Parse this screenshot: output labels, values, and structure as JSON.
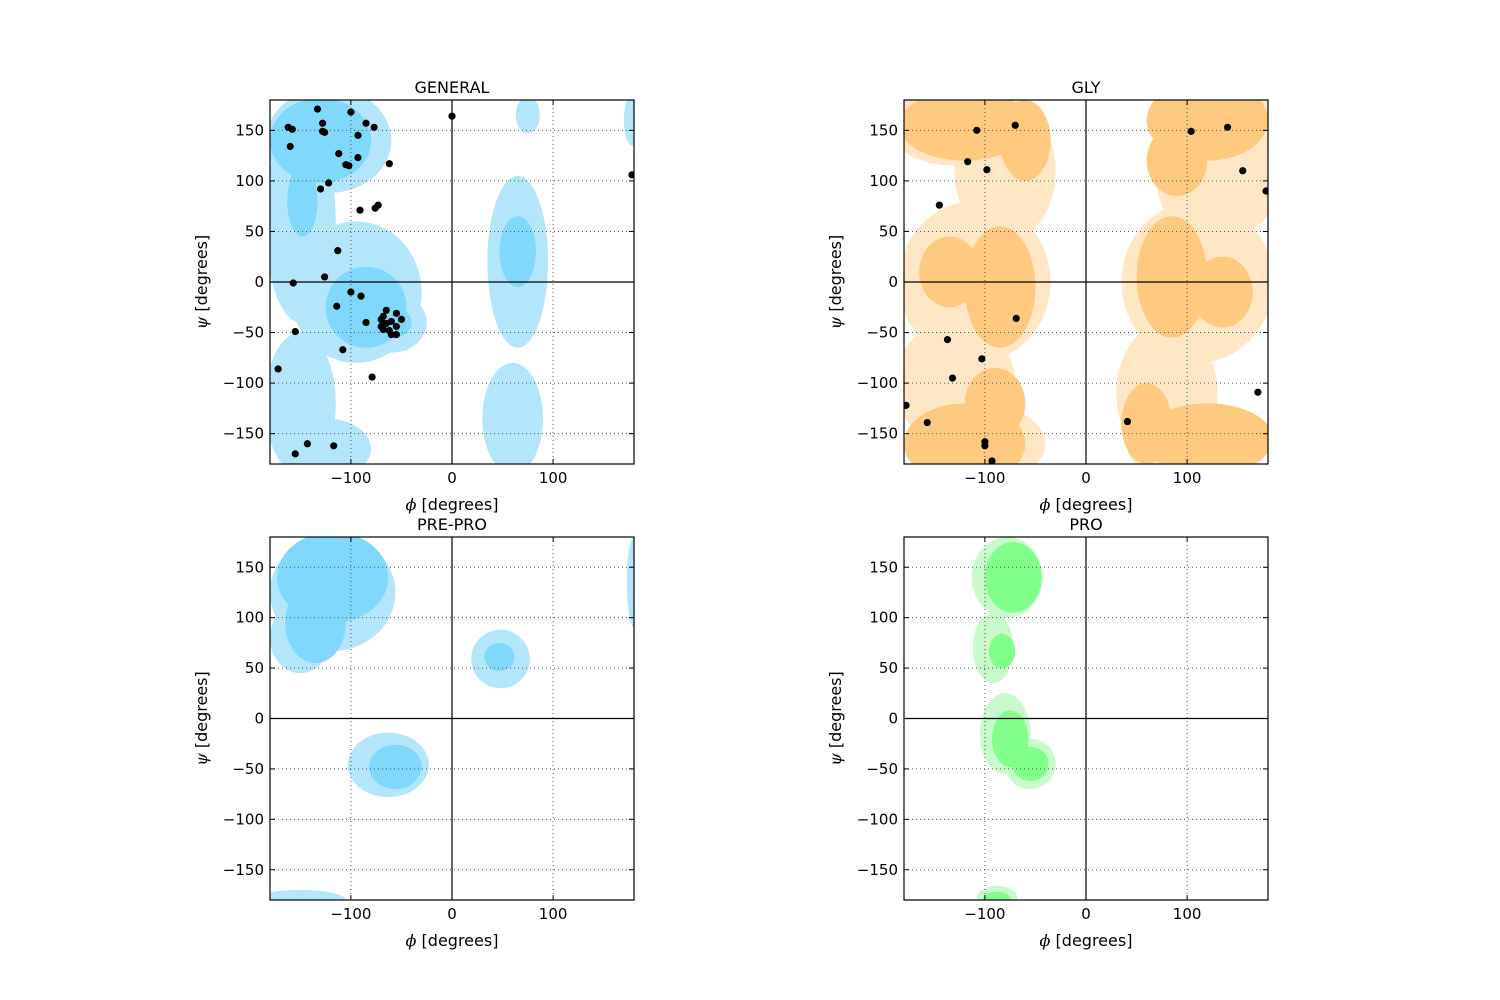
{
  "chart_data": [
    {
      "type": "scatter",
      "title": "GENERAL",
      "xlabel_symbol": "ϕ",
      "xlabel_unit": " [degrees]",
      "ylabel_symbol": "ψ",
      "ylabel_unit": " [degrees]",
      "xlim": [
        -180,
        180
      ],
      "ylim": [
        -180,
        180
      ],
      "xticks": [
        -100,
        0,
        100
      ],
      "yticks": [
        150,
        100,
        50,
        0,
        -50,
        -100,
        -150
      ],
      "grid": true,
      "colors": {
        "outer": "#b3e6fa",
        "inner": "#80d8fc"
      },
      "regions": {
        "outer": [
          {
            "cx": -122,
            "cy": 140,
            "rx": 62,
            "ry": 52
          },
          {
            "cx": -150,
            "cy": 60,
            "rx": 35,
            "ry": 100
          },
          {
            "cx": -95,
            "cy": -10,
            "rx": 65,
            "ry": 70
          },
          {
            "cx": -150,
            "cy": -120,
            "rx": 35,
            "ry": 70
          },
          {
            "cx": -125,
            "cy": -165,
            "rx": 45,
            "ry": 30
          },
          {
            "cx": -60,
            "cy": -40,
            "rx": 35,
            "ry": 30
          },
          {
            "cx": 65,
            "cy": 20,
            "rx": 30,
            "ry": 85
          },
          {
            "cx": 60,
            "cy": -135,
            "rx": 30,
            "ry": 55
          },
          {
            "cx": 75,
            "cy": 165,
            "rx": 12,
            "ry": 18
          },
          {
            "cx": 178,
            "cy": 160,
            "rx": 8,
            "ry": 25
          }
        ],
        "inner": [
          {
            "cx": -130,
            "cy": 140,
            "rx": 50,
            "ry": 42
          },
          {
            "cx": -148,
            "cy": 80,
            "rx": 15,
            "ry": 35
          },
          {
            "cx": -85,
            "cy": -25,
            "rx": 40,
            "ry": 40
          },
          {
            "cx": -60,
            "cy": -40,
            "rx": 20,
            "ry": 16
          },
          {
            "cx": 65,
            "cy": 30,
            "rx": 18,
            "ry": 35
          }
        ]
      },
      "points": [
        [
          -133,
          171
        ],
        [
          -100,
          168
        ],
        [
          -162,
          153
        ],
        [
          -158,
          151
        ],
        [
          -128,
          157
        ],
        [
          -85,
          157
        ],
        [
          -77,
          153
        ],
        [
          -128,
          149
        ],
        [
          -126,
          148
        ],
        [
          -93,
          145
        ],
        [
          -160,
          134
        ],
        [
          -112,
          127
        ],
        [
          -93,
          123
        ],
        [
          -62,
          117
        ],
        [
          -102,
          115
        ],
        [
          -105,
          116
        ],
        [
          0,
          164
        ],
        [
          -122,
          98
        ],
        [
          -130,
          92
        ],
        [
          -73,
          76
        ],
        [
          -76,
          73
        ],
        [
          -91,
          71
        ],
        [
          -113,
          31
        ],
        [
          178,
          106
        ],
        [
          -126,
          5
        ],
        [
          -157,
          -1
        ],
        [
          -100,
          -10
        ],
        [
          -90,
          -14
        ],
        [
          -114,
          -24
        ],
        [
          -65,
          -28
        ],
        [
          -55,
          -31
        ],
        [
          -68,
          -34
        ],
        [
          -70,
          -37
        ],
        [
          -85,
          -40
        ],
        [
          -50,
          -37
        ],
        [
          -60,
          -39
        ],
        [
          -65,
          -41
        ],
        [
          -70,
          -44
        ],
        [
          -55,
          -44
        ],
        [
          -62,
          -48
        ],
        [
          -68,
          -47
        ],
        [
          -55,
          -52
        ],
        [
          -60,
          -52
        ],
        [
          -155,
          -49
        ],
        [
          -108,
          -67
        ],
        [
          -172,
          -86
        ],
        [
          -79,
          -94
        ],
        [
          -143,
          -160
        ],
        [
          -117,
          -162
        ],
        [
          -155,
          -170
        ]
      ]
    },
    {
      "type": "scatter",
      "title": "GLY",
      "xlabel_symbol": "ϕ",
      "xlabel_unit": " [degrees]",
      "ylabel_symbol": "ψ",
      "ylabel_unit": " [degrees]",
      "xlim": [
        -180,
        180
      ],
      "ylim": [
        -180,
        180
      ],
      "xticks": [
        -100,
        0,
        100
      ],
      "yticks": [
        150,
        100,
        50,
        0,
        -50,
        -100,
        -150
      ],
      "grid": true,
      "colors": {
        "outer": "#ffe6c4",
        "inner": "#ffc980"
      },
      "regions": {
        "outer": [
          {
            "cx": -130,
            "cy": 160,
            "rx": 70,
            "ry": 45
          },
          {
            "cx": -80,
            "cy": 110,
            "rx": 50,
            "ry": 70
          },
          {
            "cx": -110,
            "cy": 0,
            "rx": 75,
            "ry": 80
          },
          {
            "cx": -130,
            "cy": -100,
            "rx": 60,
            "ry": 60
          },
          {
            "cx": -110,
            "cy": -160,
            "rx": 70,
            "ry": 40
          },
          {
            "cx": 130,
            "cy": 160,
            "rx": 70,
            "ry": 45
          },
          {
            "cx": 80,
            "cy": -110,
            "rx": 50,
            "ry": 70
          },
          {
            "cx": 110,
            "cy": 0,
            "rx": 75,
            "ry": 80
          },
          {
            "cx": 130,
            "cy": 100,
            "rx": 60,
            "ry": 60
          },
          {
            "cx": 110,
            "cy": -160,
            "rx": 70,
            "ry": 40
          }
        ],
        "inner": [
          {
            "cx": -120,
            "cy": 155,
            "rx": 65,
            "ry": 35
          },
          {
            "cx": -60,
            "cy": 140,
            "rx": 25,
            "ry": 40
          },
          {
            "cx": -85,
            "cy": -5,
            "rx": 35,
            "ry": 60
          },
          {
            "cx": -135,
            "cy": 10,
            "rx": 30,
            "ry": 35
          },
          {
            "cx": -120,
            "cy": -160,
            "rx": 60,
            "ry": 40
          },
          {
            "cx": -90,
            "cy": -120,
            "rx": 30,
            "ry": 35
          },
          {
            "cx": 120,
            "cy": -155,
            "rx": 65,
            "ry": 35
          },
          {
            "cx": 60,
            "cy": -140,
            "rx": 25,
            "ry": 40
          },
          {
            "cx": 85,
            "cy": 5,
            "rx": 35,
            "ry": 60
          },
          {
            "cx": 135,
            "cy": -10,
            "rx": 30,
            "ry": 35
          },
          {
            "cx": 120,
            "cy": 160,
            "rx": 60,
            "ry": 40
          },
          {
            "cx": 90,
            "cy": 120,
            "rx": 30,
            "ry": 35
          }
        ]
      },
      "points": [
        [
          -108,
          150
        ],
        [
          -70,
          155
        ],
        [
          104,
          149
        ],
        [
          140,
          153
        ],
        [
          -117,
          119
        ],
        [
          -98,
          111
        ],
        [
          155,
          110
        ],
        [
          178,
          90
        ],
        [
          -145,
          76
        ],
        [
          -69,
          -36
        ],
        [
          -137,
          -57
        ],
        [
          -132,
          -95
        ],
        [
          -103,
          -76
        ],
        [
          -178,
          -122
        ],
        [
          -157,
          -139
        ],
        [
          41,
          -138
        ],
        [
          170,
          -109
        ],
        [
          -100,
          -158
        ],
        [
          -100,
          -162
        ],
        [
          -93,
          -177
        ]
      ]
    },
    {
      "type": "contour",
      "title": "PRE-PRO",
      "xlabel_symbol": "ϕ",
      "xlabel_unit": " [degrees]",
      "ylabel_symbol": "ψ",
      "ylabel_unit": " [degrees]",
      "xlim": [
        -180,
        180
      ],
      "ylim": [
        -180,
        180
      ],
      "xticks": [
        -100,
        0,
        100
      ],
      "yticks": [
        150,
        100,
        50,
        0,
        -50,
        -100,
        -150
      ],
      "grid": true,
      "colors": {
        "outer": "#b3e6fa",
        "inner": "#80d8fc"
      },
      "regions": {
        "outer": [
          {
            "cx": -118,
            "cy": 125,
            "rx": 62,
            "ry": 58
          },
          {
            "cx": -150,
            "cy": 80,
            "rx": 30,
            "ry": 35
          },
          {
            "cx": 48,
            "cy": 59,
            "rx": 29,
            "ry": 29
          },
          {
            "cx": -63,
            "cy": -46,
            "rx": 40,
            "ry": 32
          },
          {
            "cx": -150,
            "cy": -180,
            "rx": 45,
            "ry": 10
          },
          {
            "cx": 180,
            "cy": 135,
            "rx": 7,
            "ry": 45
          }
        ],
        "inner": [
          {
            "cx": -118,
            "cy": 140,
            "rx": 55,
            "ry": 45
          },
          {
            "cx": -135,
            "cy": 95,
            "rx": 30,
            "ry": 40
          },
          {
            "cx": 47,
            "cy": 61,
            "rx": 15,
            "ry": 14
          },
          {
            "cx": -56,
            "cy": -48,
            "rx": 26,
            "ry": 22
          }
        ]
      },
      "points": []
    },
    {
      "type": "contour",
      "title": "PRO",
      "xlabel_symbol": "ϕ",
      "xlabel_unit": " [degrees]",
      "ylabel_symbol": "ψ",
      "ylabel_unit": " [degrees]",
      "xlim": [
        -180,
        180
      ],
      "ylim": [
        -180,
        180
      ],
      "xticks": [
        -100,
        0,
        100
      ],
      "yticks": [
        150,
        100,
        50,
        0,
        -50,
        -100,
        -150
      ],
      "grid": true,
      "colors": {
        "outer": "#c9facb",
        "inner": "#80ff8a"
      },
      "regions": {
        "outer": [
          {
            "cx": -78,
            "cy": 140,
            "rx": 35,
            "ry": 40
          },
          {
            "cx": -92,
            "cy": 70,
            "rx": 20,
            "ry": 35
          },
          {
            "cx": -80,
            "cy": -15,
            "rx": 25,
            "ry": 40
          },
          {
            "cx": -55,
            "cy": -45,
            "rx": 25,
            "ry": 25
          },
          {
            "cx": -88,
            "cy": -178,
            "rx": 20,
            "ry": 12
          }
        ],
        "inner": [
          {
            "cx": -72,
            "cy": 140,
            "rx": 28,
            "ry": 35
          },
          {
            "cx": -83,
            "cy": 67,
            "rx": 13,
            "ry": 17
          },
          {
            "cx": -75,
            "cy": -20,
            "rx": 18,
            "ry": 28
          },
          {
            "cx": -55,
            "cy": -45,
            "rx": 18,
            "ry": 17
          },
          {
            "cx": -88,
            "cy": -180,
            "rx": 14,
            "ry": 8
          }
        ]
      },
      "points": []
    }
  ]
}
